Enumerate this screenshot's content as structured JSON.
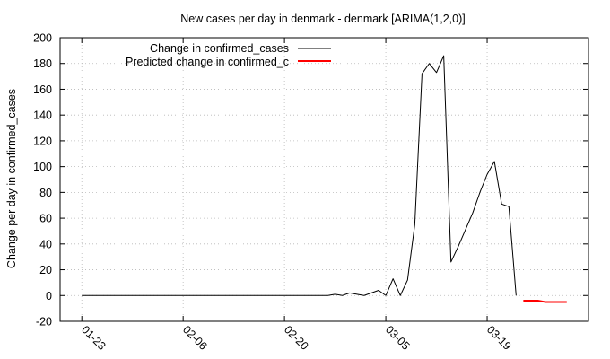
{
  "chart_data": {
    "type": "line",
    "title": "New cases per day in denmark - denmark [ARIMA(1,2,0)]",
    "xlabel": "",
    "ylabel": "Change per day in confirmed_cases",
    "ylim": [
      -20,
      200
    ],
    "yticks": [
      -20,
      0,
      20,
      40,
      60,
      80,
      100,
      120,
      140,
      160,
      180,
      200
    ],
    "xlim": [
      "2020-01-20",
      "2020-04-02"
    ],
    "xticks": [
      {
        "date": "2020-01-23",
        "label": "01-23"
      },
      {
        "date": "2020-02-06",
        "label": "02-06"
      },
      {
        "date": "2020-02-20",
        "label": "02-20"
      },
      {
        "date": "2020-03-05",
        "label": "03-05"
      },
      {
        "date": "2020-03-19",
        "label": "03-19"
      }
    ],
    "grid": true,
    "legend_position": "top-left",
    "series": [
      {
        "name": "Change in confirmed_cases",
        "color": "#000000",
        "points": [
          [
            "2020-01-23",
            0
          ],
          [
            "2020-01-24",
            0
          ],
          [
            "2020-01-25",
            0
          ],
          [
            "2020-01-26",
            0
          ],
          [
            "2020-01-27",
            0
          ],
          [
            "2020-01-28",
            0
          ],
          [
            "2020-01-29",
            0
          ],
          [
            "2020-01-30",
            0
          ],
          [
            "2020-01-31",
            0
          ],
          [
            "2020-02-01",
            0
          ],
          [
            "2020-02-02",
            0
          ],
          [
            "2020-02-03",
            0
          ],
          [
            "2020-02-04",
            0
          ],
          [
            "2020-02-05",
            0
          ],
          [
            "2020-02-06",
            0
          ],
          [
            "2020-02-07",
            0
          ],
          [
            "2020-02-08",
            0
          ],
          [
            "2020-02-09",
            0
          ],
          [
            "2020-02-10",
            0
          ],
          [
            "2020-02-11",
            0
          ],
          [
            "2020-02-12",
            0
          ],
          [
            "2020-02-13",
            0
          ],
          [
            "2020-02-14",
            0
          ],
          [
            "2020-02-15",
            0
          ],
          [
            "2020-02-16",
            0
          ],
          [
            "2020-02-17",
            0
          ],
          [
            "2020-02-18",
            0
          ],
          [
            "2020-02-19",
            0
          ],
          [
            "2020-02-20",
            0
          ],
          [
            "2020-02-21",
            0
          ],
          [
            "2020-02-22",
            0
          ],
          [
            "2020-02-23",
            0
          ],
          [
            "2020-02-24",
            0
          ],
          [
            "2020-02-25",
            0
          ],
          [
            "2020-02-26",
            0
          ],
          [
            "2020-02-27",
            1
          ],
          [
            "2020-02-28",
            0
          ],
          [
            "2020-02-29",
            2
          ],
          [
            "2020-03-01",
            1
          ],
          [
            "2020-03-02",
            0
          ],
          [
            "2020-03-03",
            2
          ],
          [
            "2020-03-04",
            4
          ],
          [
            "2020-03-05",
            0
          ],
          [
            "2020-03-06",
            13
          ],
          [
            "2020-03-07",
            0
          ],
          [
            "2020-03-08",
            12
          ],
          [
            "2020-03-09",
            55
          ],
          [
            "2020-03-10",
            172
          ],
          [
            "2020-03-11",
            180
          ],
          [
            "2020-03-12",
            173
          ],
          [
            "2020-03-13",
            186
          ],
          [
            "2020-03-14",
            26
          ],
          [
            "2020-03-15",
            38
          ],
          [
            "2020-03-16",
            51
          ],
          [
            "2020-03-17",
            64
          ],
          [
            "2020-03-18",
            80
          ],
          [
            "2020-03-19",
            94
          ],
          [
            "2020-03-20",
            104
          ],
          [
            "2020-03-21",
            71
          ],
          [
            "2020-03-22",
            69
          ],
          [
            "2020-03-23",
            0
          ]
        ]
      },
      {
        "name": "Predicted change in confirmed_c",
        "color": "#ff0000",
        "points": [
          [
            "2020-03-24",
            -4
          ],
          [
            "2020-03-25",
            -4
          ],
          [
            "2020-03-26",
            -4
          ],
          [
            "2020-03-27",
            -5
          ],
          [
            "2020-03-28",
            -5
          ],
          [
            "2020-03-29",
            -5
          ],
          [
            "2020-03-30",
            -5
          ]
        ]
      }
    ]
  }
}
